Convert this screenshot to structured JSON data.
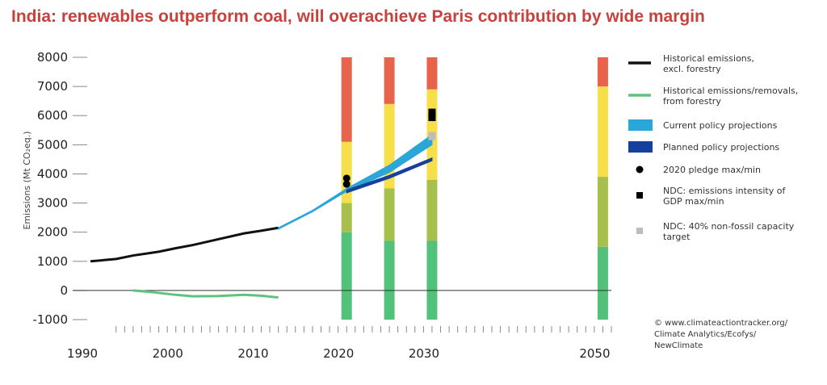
{
  "page": {
    "title": "India: renewables outperform coal,  will overachieve Paris contribution by wide margin"
  },
  "chart_data": {
    "type": "line",
    "title": "India: renewables outperform coal,  will overachieve Paris contribution by wide margin",
    "ylabel": "Emissions (Mt CO₂eq.)",
    "xlabel": "",
    "xlim": [
      1990,
      2051
    ],
    "ylim": [
      -1000,
      8000
    ],
    "x_ticks": [
      1990,
      2000,
      2010,
      2020,
      2030,
      2050
    ],
    "y_ticks": [
      -1000,
      0,
      1000,
      2000,
      3000,
      4000,
      5000,
      6000,
      7000,
      8000
    ],
    "y_tick_labels": [
      "-1000",
      "0",
      "1000",
      "2000",
      "3000",
      "4000",
      "5000",
      "6000",
      "7000",
      "8000"
    ],
    "x_tick_labels": [
      "1990",
      "2000",
      "2010",
      "2020",
      "2030",
      "2050"
    ],
    "grid": false,
    "legend_position": "right",
    "colors": {
      "historical": "#111111",
      "forestry": "#5fc27e",
      "current_policy": "#2aa6d8",
      "planned_policy": "#163f9e",
      "pledge": "#000000",
      "ndc_intensity": "#000000",
      "ndc_nonfossil": "#bdbdbd",
      "band_red": "#e8634b",
      "band_yellow": "#f7df4a",
      "band_olive": "#a7c04c",
      "band_green": "#52c27a"
    },
    "series": [
      {
        "name": "Historical emissions, excl. forestry",
        "x": [
          1990,
          1993,
          1995,
          1998,
          2000,
          2002,
          2005,
          2008,
          2010,
          2012
        ],
        "y": [
          1000,
          1080,
          1200,
          1330,
          1450,
          1560,
          1760,
          1960,
          2050,
          2150
        ]
      },
      {
        "name": "Historical emissions/removals, from forestry",
        "x": [
          1995,
          1997,
          2000,
          2002,
          2005,
          2008,
          2010,
          2012
        ],
        "y": [
          0,
          -50,
          -150,
          -200,
          -190,
          -150,
          -180,
          -240
        ]
      },
      {
        "name": "Current policy projections",
        "x": [
          2012,
          2016,
          2020,
          2025,
          2030
        ],
        "y_upper": [
          2150,
          2750,
          3500,
          4300,
          5350
        ],
        "y_lower": [
          2100,
          2700,
          3400,
          4050,
          5000
        ]
      },
      {
        "name": "Planned policy projections",
        "x": [
          2020,
          2025,
          2030
        ],
        "y_upper": [
          3450,
          3950,
          4550
        ],
        "y_lower": [
          3350,
          3850,
          4450
        ]
      }
    ],
    "markers": [
      {
        "name": "2020 pledge max/min",
        "x": 2020,
        "y": [
          3650,
          3850
        ],
        "shape": "circle"
      },
      {
        "name": "NDC: emissions intensity of GDP max/min",
        "x": 2030,
        "y": [
          5950,
          6100
        ],
        "shape": "square"
      },
      {
        "name": "NDC: 40% non-fossil capacity target",
        "x": 2030,
        "y": [
          5300
        ],
        "shape": "square"
      }
    ],
    "bands": [
      {
        "x": 2020,
        "segments": [
          [
            -1000,
            2000,
            "band_green"
          ],
          [
            2000,
            3000,
            "band_olive"
          ],
          [
            3000,
            5100,
            "band_yellow"
          ],
          [
            5100,
            8000,
            "band_red"
          ]
        ]
      },
      {
        "x": 2025,
        "segments": [
          [
            -1000,
            1700,
            "band_green"
          ],
          [
            1700,
            3500,
            "band_olive"
          ],
          [
            3500,
            6400,
            "band_yellow"
          ],
          [
            6400,
            8000,
            "band_red"
          ]
        ]
      },
      {
        "x": 2030,
        "segments": [
          [
            -1000,
            1700,
            "band_green"
          ],
          [
            1700,
            3800,
            "band_olive"
          ],
          [
            3800,
            6900,
            "band_yellow"
          ],
          [
            6900,
            8000,
            "band_red"
          ]
        ]
      },
      {
        "x": 2050,
        "segments": [
          [
            -1000,
            1500,
            "band_green"
          ],
          [
            1500,
            3900,
            "band_olive"
          ],
          [
            3900,
            7000,
            "band_yellow"
          ],
          [
            7000,
            8000,
            "band_red"
          ]
        ]
      }
    ],
    "legend": [
      {
        "label_lines": [
          "Historical emissions,",
          "excl. forestry"
        ],
        "symbol": "line",
        "color": "historical"
      },
      {
        "label_lines": [
          "Historical emissions/removals,",
          "from forestry"
        ],
        "symbol": "line",
        "color": "forestry"
      },
      {
        "label_lines": [
          "Current policy projections"
        ],
        "symbol": "box",
        "color": "current_policy"
      },
      {
        "label_lines": [
          "Planned policy projections"
        ],
        "symbol": "box",
        "color": "planned_policy"
      },
      {
        "label_lines": [
          "2020 pledge max/min"
        ],
        "symbol": "circle",
        "color": "pledge"
      },
      {
        "label_lines": [
          "NDC: emissions intensity of",
          "GDP max/min"
        ],
        "symbol": "square",
        "color": "ndc_intensity"
      },
      {
        "label_lines": [
          "NDC: 40% non-fossil capacity",
          "target"
        ],
        "symbol": "square",
        "color": "ndc_nonfossil"
      }
    ],
    "credit_lines": [
      "© www.climateactiontracker.org/",
      "Climate Analytics/Ecofys/",
      "NewClimate"
    ]
  }
}
